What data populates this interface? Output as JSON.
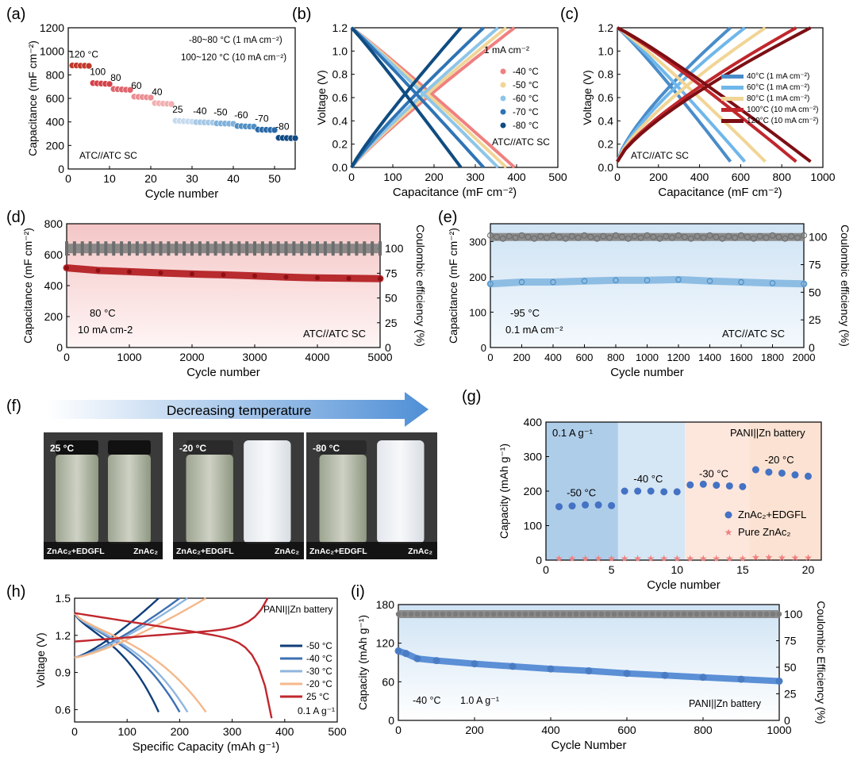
{
  "colors": {
    "axis": "#000000",
    "gray": "#7f7f7f",
    "red_dark": "#b0171b",
    "blue_mid": "#5b8fd6",
    "pink": "#f4c6c6",
    "light_blue": "#c9dff0",
    "orange_light": "#fbe6da"
  },
  "panels": {
    "a": {
      "label": "(a)"
    },
    "b": {
      "label": "(b)"
    },
    "c": {
      "label": "(c)"
    },
    "d": {
      "label": "(d)"
    },
    "e": {
      "label": "(e)"
    },
    "f": {
      "label": "(f)"
    },
    "g": {
      "label": "(g)"
    },
    "h": {
      "label": "(h)"
    },
    "i": {
      "label": "(i)"
    }
  },
  "chart_data": [
    {
      "id": "a",
      "type": "scatter",
      "xlabel": "Cycle number",
      "ylabel": "Capacitance (mF cm⁻²)",
      "xlim": [
        0,
        55
      ],
      "ylim": [
        0,
        1200
      ],
      "xticks": [
        "0",
        "10",
        "20",
        "30",
        "40",
        "50"
      ],
      "yticks": [
        "0",
        "200",
        "400",
        "600",
        "800",
        "1000",
        "1200"
      ],
      "notes": [
        "-80~80 °C (1 mA cm⁻²)",
        "100~120 °C (10 mA cm⁻²)"
      ],
      "system": "ATC//ATC SC",
      "groups": [
        {
          "label": "120 °C",
          "x": [
            1,
            2,
            3,
            4,
            5
          ],
          "y": [
            880,
            880,
            878,
            878,
            876
          ],
          "color": "#c0392b"
        },
        {
          "label": "100",
          "x": [
            6,
            7,
            8,
            9,
            10
          ],
          "y": [
            730,
            728,
            726,
            724,
            722
          ],
          "color": "#d4414a"
        },
        {
          "label": "80",
          "x": [
            11,
            12,
            13,
            14,
            15
          ],
          "y": [
            680,
            678,
            676,
            674,
            672
          ],
          "color": "#e0636b"
        },
        {
          "label": "60",
          "x": [
            16,
            17,
            18,
            19,
            20
          ],
          "y": [
            615,
            613,
            611,
            609,
            607
          ],
          "color": "#eb8d92"
        },
        {
          "label": "40",
          "x": [
            21,
            22,
            23,
            24,
            25
          ],
          "y": [
            560,
            558,
            556,
            554,
            552
          ],
          "color": "#f2b0b2"
        },
        {
          "label": "25",
          "x": [
            26,
            27,
            28,
            29,
            30
          ],
          "y": [
            410,
            408,
            406,
            404,
            402
          ],
          "color": "#c6dbef"
        },
        {
          "label": "-40",
          "x": [
            31,
            32,
            33,
            34,
            35
          ],
          "y": [
            398,
            397,
            396,
            395,
            394
          ],
          "color": "#a6c8e6"
        },
        {
          "label": "-50",
          "x": [
            36,
            37,
            38,
            39,
            40
          ],
          "y": [
            388,
            387,
            386,
            385,
            384
          ],
          "color": "#7fb1da"
        },
        {
          "label": "-60",
          "x": [
            41,
            42,
            43,
            44,
            45
          ],
          "y": [
            365,
            364,
            362,
            361,
            360
          ],
          "color": "#4f8fc4"
        },
        {
          "label": "-70",
          "x": [
            46,
            47,
            48,
            49,
            50
          ],
          "y": [
            335,
            334,
            333,
            332,
            331
          ],
          "color": "#2b6aa8"
        },
        {
          "label": "-80",
          "x": [
            51,
            52,
            53,
            54,
            55
          ],
          "y": [
            265,
            264,
            263,
            262,
            262
          ],
          "color": "#124a82"
        }
      ]
    },
    {
      "id": "b",
      "type": "line",
      "xlabel": "Capacitance (mF cm⁻²)",
      "ylabel": "Voltage (V)",
      "xlim": [
        0,
        500
      ],
      "ylim": [
        0,
        1.2
      ],
      "xticks": [
        "0",
        "100",
        "200",
        "300",
        "400",
        "500"
      ],
      "yticks": [
        "0.0",
        "0.2",
        "0.4",
        "0.6",
        "0.8",
        "1.0",
        "1.2"
      ],
      "legend_title": "1 mA cm⁻²",
      "system": "ATC//ATC SC",
      "series": [
        {
          "name": "-40 °C",
          "end": 395,
          "color": "#f08080"
        },
        {
          "name": "-50 °C",
          "end": 375,
          "color": "#f1d596"
        },
        {
          "name": "-60 °C",
          "end": 355,
          "color": "#8ec5e8"
        },
        {
          "name": "-70 °C",
          "end": 320,
          "color": "#2f74b5"
        },
        {
          "name": "-80 °C",
          "end": 265,
          "color": "#0f4c81"
        }
      ]
    },
    {
      "id": "c",
      "type": "line",
      "xlabel": "Capacitance (mF cm⁻²)",
      "ylabel": "Voltage (V)",
      "xlim": [
        0,
        1000
      ],
      "ylim": [
        0,
        1.2
      ],
      "xticks": [
        "0",
        "200",
        "400",
        "600",
        "800",
        "1000"
      ],
      "yticks": [
        "0.0",
        "0.2",
        "0.4",
        "0.6",
        "0.8",
        "1.0",
        "1.2"
      ],
      "system": "ATC//ATC SC",
      "series": [
        {
          "name": "40°C (1 mA cm⁻²)",
          "end": 550,
          "color": "#4a8cc9"
        },
        {
          "name": "60°C (1 mA cm⁻²)",
          "end": 620,
          "color": "#6fb7ea"
        },
        {
          "name": "80°C (1 mA cm⁻²)",
          "end": 720,
          "color": "#f1d596"
        },
        {
          "name": "100°C (10 mA cm⁻²)",
          "end": 870,
          "color": "#c0272d"
        },
        {
          "name": "120°C (10 mA cm⁻²)",
          "end": 940,
          "color": "#7d0f14"
        }
      ]
    },
    {
      "id": "d",
      "type": "scatter",
      "xlabel": "Cycle number",
      "ylabel": "Capacitance (mF cm⁻²)",
      "y2label": "Coulombic efficiency (%)",
      "xlim": [
        0,
        5000
      ],
      "ylim": [
        0,
        800
      ],
      "y2lim": [
        0,
        125
      ],
      "xticks": [
        "0",
        "1000",
        "2000",
        "3000",
        "4000",
        "5000"
      ],
      "yticks": [
        "0",
        "200",
        "400",
        "600",
        "800"
      ],
      "y2ticks": [
        "0",
        "25",
        "50",
        "75",
        "100"
      ],
      "condition": "80 °C",
      "current": "10 mA cm-2",
      "system": "ATC//ATC SC",
      "capacitance": {
        "x": [
          0,
          500,
          1000,
          1500,
          2000,
          2500,
          3000,
          3500,
          4000,
          4500,
          5000
        ],
        "y": [
          515,
          498,
          490,
          482,
          475,
          470,
          463,
          455,
          450,
          447,
          445
        ]
      },
      "efficiency": {
        "x": [
          0,
          5000
        ],
        "y": [
          100,
          100
        ]
      }
    },
    {
      "id": "e",
      "type": "scatter",
      "xlabel": "Cycle number",
      "ylabel": "Capacitance (mF cm⁻²)",
      "y2label": "Coulombic efficiency (%)",
      "xlim": [
        0,
        2000
      ],
      "ylim": [
        0,
        350
      ],
      "y2lim": [
        0,
        112
      ],
      "xticks": [
        "0",
        "200",
        "400",
        "600",
        "800",
        "1000",
        "1200",
        "1400",
        "1600",
        "1800",
        "2000"
      ],
      "yticks": [
        "0",
        "100",
        "200",
        "300"
      ],
      "y2ticks": [
        "0",
        "25",
        "50",
        "75",
        "100"
      ],
      "condition": "-95 °C",
      "current": "0.1 mA cm⁻²",
      "system": "ATC//ATC SC",
      "capacitance": {
        "x": [
          0,
          200,
          400,
          600,
          800,
          1000,
          1200,
          1400,
          1600,
          1800,
          2000
        ],
        "y": [
          180,
          185,
          185,
          188,
          190,
          190,
          192,
          188,
          185,
          182,
          180
        ]
      },
      "efficiency": {
        "x": [
          0,
          2000
        ],
        "y": [
          100,
          100
        ]
      }
    },
    {
      "id": "g",
      "type": "scatter",
      "xlabel": "Cycle number",
      "ylabel": "Capacity (mAh g⁻¹)",
      "xlim": [
        0,
        21
      ],
      "ylim": [
        0,
        400
      ],
      "xticks": [
        "0",
        "5",
        "10",
        "15",
        "20"
      ],
      "yticks": [
        "0",
        "100",
        "200",
        "300",
        "400"
      ],
      "current": "0.1 A g⁻¹",
      "system": "PANI||Zn battery",
      "temp_labels": [
        "-50 °C",
        "-40 °C",
        "-30 °C",
        "-20 °C"
      ],
      "series": [
        {
          "name": "ZnAc₂+EDGFL",
          "x": [
            1,
            2,
            3,
            4,
            5,
            6,
            7,
            8,
            9,
            10,
            11,
            12,
            13,
            14,
            15,
            16,
            17,
            18,
            19,
            20
          ],
          "y": [
            155,
            157,
            160,
            160,
            158,
            200,
            200,
            200,
            198,
            198,
            218,
            220,
            217,
            215,
            213,
            262,
            255,
            252,
            247,
            243
          ],
          "color": "#4472c4"
        },
        {
          "name": "Pure ZnAc₂",
          "x": [
            1,
            2,
            3,
            4,
            5,
            6,
            7,
            8,
            9,
            10,
            11,
            12,
            13,
            14,
            15,
            16,
            17,
            18,
            19,
            20
          ],
          "y": [
            5,
            5,
            5,
            5,
            5,
            5,
            5,
            5,
            5,
            5,
            5,
            5,
            5,
            5,
            5,
            8,
            8,
            7,
            7,
            7
          ],
          "color": "#f08080"
        }
      ]
    },
    {
      "id": "h",
      "type": "line",
      "xlabel": "Specific Capacity (mAh g⁻¹)",
      "ylabel": "Voltage (V)",
      "xlim": [
        0,
        500
      ],
      "ylim": [
        0.5,
        1.5
      ],
      "xticks": [
        "0",
        "100",
        "200",
        "300",
        "400",
        "500"
      ],
      "yticks": [
        "0.6",
        "0.9",
        "1.2",
        "1.5"
      ],
      "system": "PANI||Zn battery",
      "current": "0.1 A g⁻¹",
      "series": [
        {
          "name": "-50 °C",
          "end": 160,
          "color": "#0f3d7a"
        },
        {
          "name": "-40 °C",
          "end": 200,
          "color": "#3d6fb3"
        },
        {
          "name": "-30 °C",
          "end": 215,
          "color": "#8fb6dd"
        },
        {
          "name": "-20 °C",
          "end": 250,
          "color": "#f4b88b"
        },
        {
          "name": "25 °C",
          "end": 375,
          "color": "#c0272d"
        }
      ]
    },
    {
      "id": "i",
      "type": "scatter",
      "xlabel": "Cycle Number",
      "ylabel": "Capacity (mAh g⁻¹)",
      "y2label": "Coulombic Efficiency (%)",
      "xlim": [
        0,
        1000
      ],
      "ylim": [
        0,
        180
      ],
      "y2lim": [
        0,
        109
      ],
      "xticks": [
        "0",
        "200",
        "400",
        "600",
        "800",
        "1000"
      ],
      "yticks": [
        "0",
        "60",
        "120",
        "180"
      ],
      "y2ticks": [
        "0",
        "25",
        "50",
        "75",
        "100"
      ],
      "condition": "-40 °C",
      "current": "1.0 A g⁻¹",
      "system": "PANI||Zn battery",
      "capacity": {
        "x": [
          0,
          20,
          50,
          100,
          200,
          300,
          400,
          500,
          600,
          700,
          800,
          900,
          1000
        ],
        "y": [
          108,
          104,
          96,
          93,
          88,
          84,
          80,
          77,
          73,
          70,
          67,
          64,
          61
        ]
      },
      "efficiency": {
        "x": [
          0,
          1000
        ],
        "y": [
          100,
          100
        ]
      }
    }
  ],
  "photo": {
    "arrow_text": "Decreasing temperature",
    "images": [
      {
        "temp": "25 °C",
        "left_label": "ZnAc₂+EDGFL",
        "right_label": "ZnAc₂"
      },
      {
        "temp": "-20 °C",
        "left_label": "ZnAc₂+EDGFL",
        "right_label": "ZnAc₂"
      },
      {
        "temp": "-80 °C",
        "left_label": "ZnAc₂+EDGFL",
        "right_label": "ZnAc₂"
      }
    ]
  }
}
